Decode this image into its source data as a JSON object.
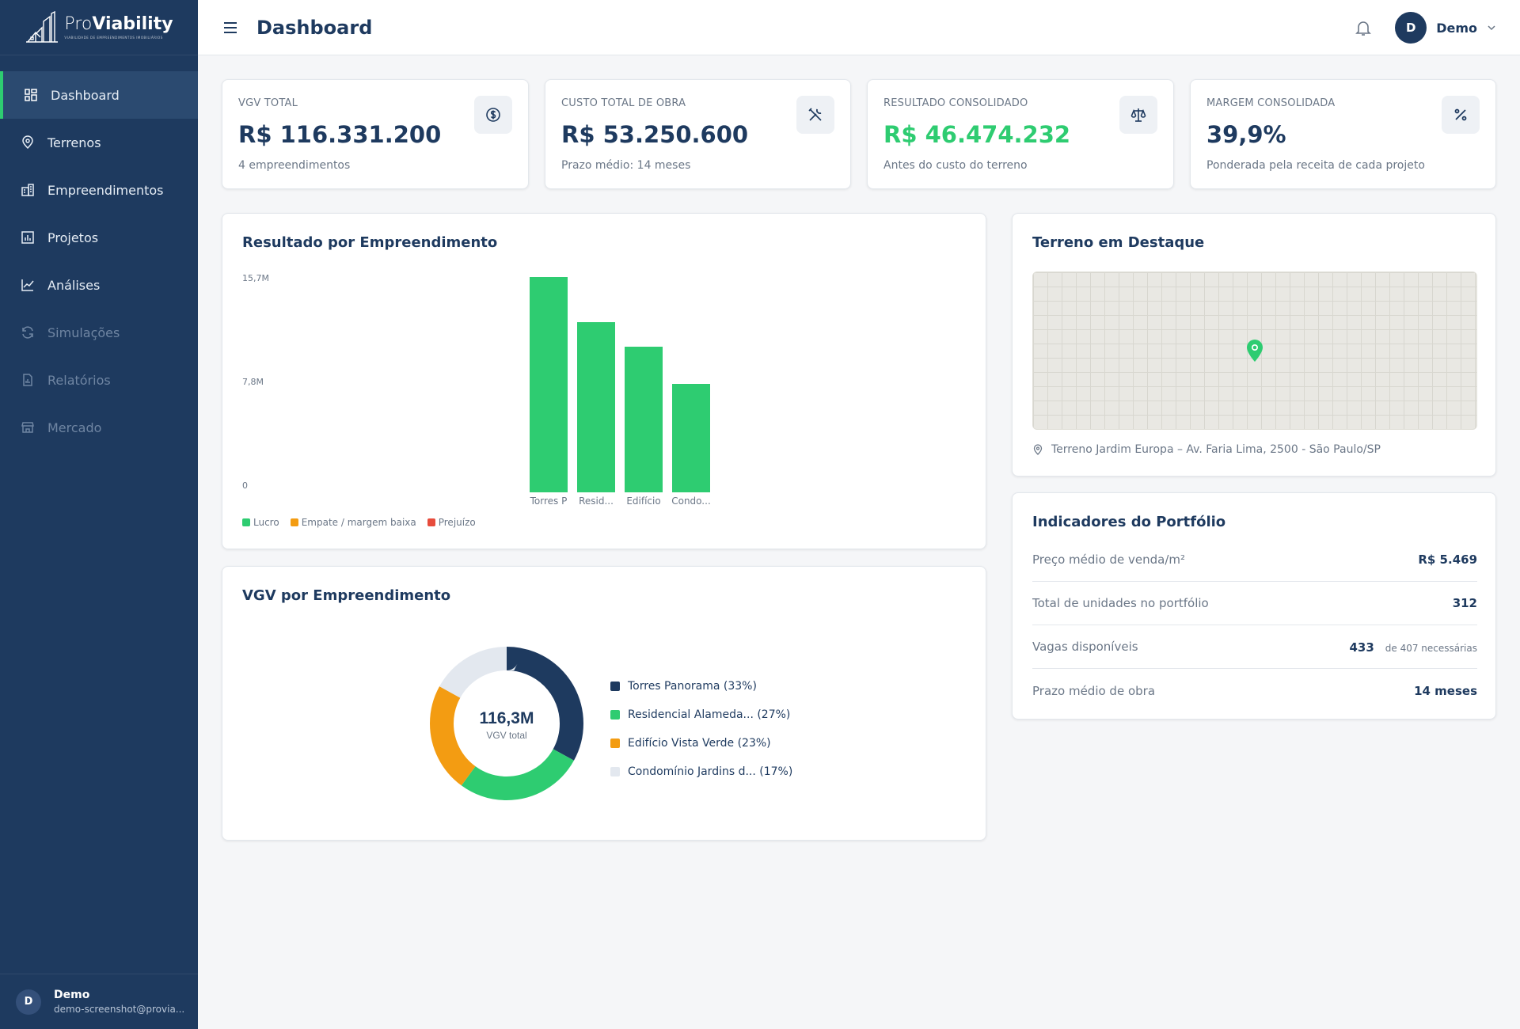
{
  "brand": {
    "pro": "Pro",
    "viability": "Viability",
    "tagline": "VIABILIDADE DE EMPREENDIMENTOS IMOBILIÁRIOS"
  },
  "sidebar": {
    "items": [
      {
        "label": "Dashboard",
        "icon": "dashboard-icon",
        "active": true
      },
      {
        "label": "Terrenos",
        "icon": "map-pin-icon"
      },
      {
        "label": "Empreendimentos",
        "icon": "building-icon"
      },
      {
        "label": "Projetos",
        "icon": "chart-board-icon"
      },
      {
        "label": "Análises",
        "icon": "line-chart-icon"
      },
      {
        "label": "Simulações",
        "icon": "refresh-icon",
        "disabled": true
      },
      {
        "label": "Relatórios",
        "icon": "report-icon",
        "disabled": true
      },
      {
        "label": "Mercado",
        "icon": "store-icon",
        "disabled": true
      }
    ],
    "footer": {
      "initial": "D",
      "name": "Demo",
      "email": "demo-screenshot@provia..."
    }
  },
  "header": {
    "title": "Dashboard",
    "user_initial": "D",
    "user_name": "Demo"
  },
  "kpis": [
    {
      "label": "VGV TOTAL",
      "value": "R$ 116.331.200",
      "sub": "4 empreendimentos",
      "icon": "dollar-circle-icon"
    },
    {
      "label": "CUSTO TOTAL DE OBRA",
      "value": "R$ 53.250.600",
      "sub": "Prazo médio: 14 meses",
      "icon": "tools-icon"
    },
    {
      "label": "RESULTADO CONSOLIDADO",
      "value": "R$ 46.474.232",
      "sub": "Antes do custo do terreno",
      "icon": "scale-icon",
      "value_color": "#2ecc71"
    },
    {
      "label": "MARGEM CONSOLIDADA",
      "value": "39,9%",
      "sub": "Ponderada pela receita de cada projeto",
      "icon": "percent-icon"
    }
  ],
  "colors": {
    "navy": "#1e3a5f",
    "green": "#2ecc71",
    "orange": "#f39c12",
    "red": "#e74c3c",
    "gray": "#e3e8ef"
  },
  "result_chart": {
    "title": "Resultado por Empreendimento",
    "ticks": [
      "15,7M",
      "7,8M",
      "0"
    ],
    "legend": [
      "Lucro",
      "Empate / margem baixa",
      "Prejuízo"
    ]
  },
  "vgv_chart": {
    "title": "VGV por Empreendimento",
    "center_value": "116,3M",
    "center_label": "VGV total",
    "legend": [
      "Torres Panorama (33%)",
      "Residencial Alameda... (27%)",
      "Edifício Vista Verde (23%)",
      "Condomínio Jardins d... (17%)"
    ]
  },
  "chart_data": [
    {
      "type": "bar",
      "title": "Resultado por Empreendimento",
      "categories": [
        "Torres P",
        "Resid...",
        "Edifício",
        "Condo..."
      ],
      "values": [
        15.7,
        12.4,
        10.6,
        7.9
      ],
      "unit": "M",
      "ylim": [
        0,
        15.7
      ],
      "yticks": [
        "0",
        "7,8M",
        "15,7M"
      ],
      "series_status": [
        "Lucro",
        "Lucro",
        "Lucro",
        "Lucro"
      ],
      "legend": [
        "Lucro",
        "Empate / margem baixa",
        "Prejuízo"
      ],
      "legend_position": "bottom-left",
      "grid": false
    },
    {
      "type": "pie",
      "title": "VGV por Empreendimento",
      "labels": [
        "Torres Panorama",
        "Residencial Alameda...",
        "Edifício Vista Verde",
        "Condomínio Jardins d..."
      ],
      "values": [
        33,
        27,
        23,
        17
      ],
      "colors": [
        "#1e3a5f",
        "#2ecc71",
        "#f39c12",
        "#e3e8ef"
      ],
      "center_text": "116,3M",
      "legend_position": "right"
    }
  ],
  "map_card": {
    "title": "Terreno em Destaque",
    "caption": "Terreno Jardim Europa – Av. Faria Lima, 2500 - São Paulo/SP"
  },
  "indicators": {
    "title": "Indicadores do Portfólio",
    "rows": [
      {
        "label": "Preço médio de venda/m²",
        "value": "R$ 5.469"
      },
      {
        "label": "Total de unidades no portfólio",
        "value": "312"
      },
      {
        "label": "Vagas disponíveis",
        "value": "433",
        "note": "de 407 necessárias"
      },
      {
        "label": "Prazo médio de obra",
        "value": "14 meses"
      }
    ]
  }
}
